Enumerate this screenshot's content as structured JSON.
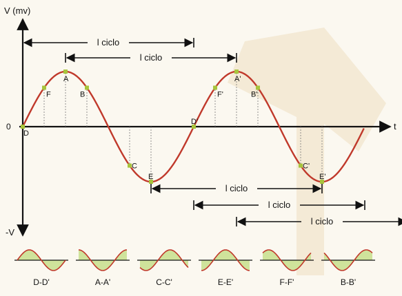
{
  "colors": {
    "background": "#fbf8f0",
    "wave": "#c0392b",
    "marker": "#a8c43c",
    "fill": "#cfe39b",
    "watermark": "#f2e6cf",
    "axis": "#111111"
  },
  "axes": {
    "y_label": "V (mv)",
    "y_neg_label": "-V",
    "origin_label": "0",
    "x_label": "t"
  },
  "cycles": [
    {
      "label": "l ciclo",
      "from": 0.0,
      "to": 1.0
    },
    {
      "label": "l ciclo",
      "from": 0.25,
      "to": 1.25
    },
    {
      "label": "l ciclo",
      "from": 0.75,
      "to": 1.75
    },
    {
      "label": "l ciclo",
      "from": 1.0,
      "to": 2.0
    },
    {
      "label": "l ciclo",
      "from": 1.25,
      "to": 2.25
    }
  ],
  "points": [
    {
      "label": "D",
      "phase": 0.0
    },
    {
      "label": "F",
      "phase": 0.125
    },
    {
      "label": "A",
      "phase": 0.25
    },
    {
      "label": "B",
      "phase": 0.375
    },
    {
      "label": "C",
      "phase": 0.625
    },
    {
      "label": "E",
      "phase": 0.75
    },
    {
      "label": "D'",
      "phase": 1.0
    },
    {
      "label": "F'",
      "phase": 1.125
    },
    {
      "label": "A'",
      "phase": 1.25
    },
    {
      "label": "B'",
      "phase": 1.375
    },
    {
      "label": "C'",
      "phase": 1.625
    },
    {
      "label": "E'",
      "phase": 1.75
    }
  ],
  "thumbnails": [
    {
      "label": "D-D'",
      "phase": 0.0
    },
    {
      "label": "A-A'",
      "phase": 0.25
    },
    {
      "label": "C-C'",
      "phase": 0.625
    },
    {
      "label": "E-E'",
      "phase": 0.75
    },
    {
      "label": "F-F'",
      "phase": 0.125
    },
    {
      "label": "B-B'",
      "phase": 0.375
    }
  ]
}
